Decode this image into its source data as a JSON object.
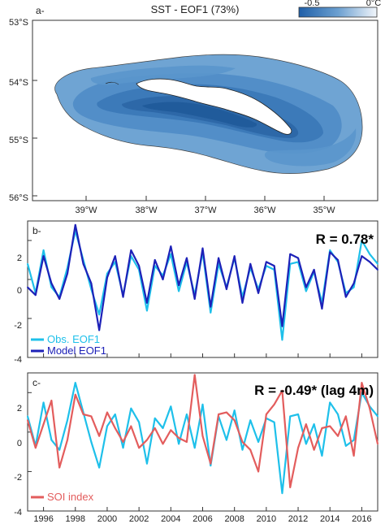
{
  "figure": {
    "panel_a": {
      "label": "a-",
      "title": "SST - EOF1 (73%)",
      "colorbar": {
        "min_label": "-0.5",
        "max_label": "0°C",
        "color_dark": "#1f5fa8",
        "color_light": "#f2f6fb"
      },
      "lat_labels": [
        "53°S",
        "54°S",
        "55°S",
        "56°S"
      ],
      "lon_labels": [
        "39°W",
        "38°W",
        "37°W",
        "36°W",
        "35°W"
      ]
    },
    "panel_b": {
      "label": "b-",
      "stat": "R = 0.78*",
      "legend": [
        "Obs.   EOF1",
        "Model EOF1"
      ],
      "y_ticks": [
        "2",
        "0",
        "-2",
        "-4"
      ]
    },
    "panel_c": {
      "label": "c-",
      "stat": "R = -0.49* (lag 4m)",
      "legend": [
        "SOI index"
      ],
      "y_ticks": [
        "2",
        "0",
        "-2",
        "-4"
      ],
      "x_ticks": [
        "1996",
        "1998",
        "2000",
        "2002",
        "2004",
        "2006",
        "2008",
        "2010",
        "2012",
        "2014",
        "2016"
      ]
    }
  },
  "chart_data": [
    {
      "type": "heatmap",
      "title": "SST - EOF1 (73%)",
      "xlabel": "",
      "ylabel": "",
      "xlim": [
        -40,
        -34.2
      ],
      "ylim": [
        -56,
        -53
      ],
      "x_ticks": [
        "39°W",
        "38°W",
        "37°W",
        "36°W",
        "35°W"
      ],
      "y_ticks": [
        "53°S",
        "54°S",
        "55°S",
        "56°S"
      ],
      "colorbar_range": [
        -0.5,
        0
      ],
      "colors": {
        "strong": "#1f5fa8",
        "weak": "#f2f6fb",
        "land": "#ffffff"
      }
    },
    {
      "type": "line",
      "xlim": [
        1995,
        2017
      ],
      "ylim": [
        -4,
        3
      ],
      "y_ticks": [
        2,
        0,
        -2,
        -4
      ],
      "x": [
        1995.0,
        1995.5,
        1996.0,
        1996.5,
        1997.0,
        1997.5,
        1998.0,
        1998.5,
        1999.0,
        1999.5,
        2000.0,
        2000.5,
        2001.0,
        2001.5,
        2002.0,
        2002.5,
        2003.0,
        2003.5,
        2004.0,
        2004.5,
        2005.0,
        2005.5,
        2006.0,
        2006.5,
        2007.0,
        2007.5,
        2008.0,
        2008.5,
        2009.0,
        2009.5,
        2010.0,
        2010.5,
        2011.0,
        2011.5,
        2012.0,
        2012.5,
        2013.0,
        2013.5,
        2014.0,
        2014.5,
        2015.0,
        2015.5,
        2016.0,
        2016.5,
        2017.0
      ],
      "series": [
        {
          "name": "Obs.   EOF1",
          "color": "#1ec0ea",
          "values": [
            0.8,
            -0.7,
            1.5,
            -0.4,
            -0.9,
            0.6,
            2.5,
            1.0,
            -0.5,
            -1.8,
            0.3,
            0.9,
            -0.8,
            1.2,
            0.5,
            -1.6,
            0.7,
            0.2,
            1.3,
            -0.6,
            0.9,
            -0.8,
            1.4,
            -1.7,
            0.8,
            -0.4,
            1.1,
            -0.9,
            0.6,
            -0.5,
            0.7,
            0.5,
            -3.1,
            0.8,
            0.9,
            -0.6,
            0.4,
            -1.2,
            1.5,
            0.9,
            -0.7,
            -0.4,
            2.0,
            1.3,
            0.8
          ]
        },
        {
          "name": "Model EOF1",
          "color": "#1d21b8",
          "values": [
            -0.4,
            -0.8,
            1.2,
            -0.2,
            -1.0,
            0.3,
            2.8,
            0.8,
            -0.2,
            -2.6,
            0.1,
            1.2,
            -0.9,
            1.5,
            0.7,
            -1.2,
            1.0,
            0.0,
            1.7,
            -0.3,
            1.1,
            -1.0,
            1.6,
            -1.4,
            1.1,
            -0.5,
            1.2,
            -1.2,
            0.8,
            -0.7,
            0.9,
            0.7,
            -2.4,
            1.3,
            1.1,
            -0.4,
            0.5,
            -1.5,
            1.4,
            1.0,
            -0.9,
            -0.2,
            1.2,
            0.9,
            0.5
          ]
        }
      ]
    },
    {
      "type": "line",
      "xlim": [
        1995,
        2017
      ],
      "ylim": [
        -4,
        3
      ],
      "y_ticks": [
        2,
        0,
        -2,
        -4
      ],
      "x_ticks": [
        1996,
        1998,
        2000,
        2002,
        2004,
        2006,
        2008,
        2010,
        2012,
        2014,
        2016
      ],
      "x": [
        1995.0,
        1995.5,
        1996.0,
        1996.5,
        1997.0,
        1997.5,
        1998.0,
        1998.5,
        1999.0,
        1999.5,
        2000.0,
        2000.5,
        2001.0,
        2001.5,
        2002.0,
        2002.5,
        2003.0,
        2003.5,
        2004.0,
        2004.5,
        2005.0,
        2005.5,
        2006.0,
        2006.5,
        2007.0,
        2007.5,
        2008.0,
        2008.5,
        2009.0,
        2009.5,
        2010.0,
        2010.5,
        2011.0,
        2011.5,
        2012.0,
        2012.5,
        2013.0,
        2013.5,
        2014.0,
        2014.5,
        2015.0,
        2015.5,
        2016.0,
        2016.5,
        2017.0
      ],
      "series": [
        {
          "color": "#1ec0ea",
          "values": [
            0.8,
            -0.7,
            1.5,
            -0.4,
            -0.9,
            0.6,
            2.5,
            1.0,
            -0.5,
            -1.8,
            0.3,
            0.9,
            -0.8,
            1.2,
            0.5,
            -1.6,
            0.7,
            0.2,
            1.3,
            -0.6,
            0.9,
            -0.8,
            1.4,
            -1.7,
            0.8,
            -0.4,
            1.1,
            -0.9,
            0.6,
            -0.5,
            0.7,
            0.5,
            -3.1,
            0.8,
            0.9,
            -0.6,
            0.4,
            -1.2,
            1.5,
            0.9,
            -0.7,
            -0.4,
            2.0,
            1.3,
            0.8
          ]
        },
        {
          "name": "SOI index",
          "color": "#e35d5d",
          "values": [
            0.6,
            -0.8,
            0.4,
            1.6,
            -1.8,
            -0.4,
            1.9,
            0.9,
            0.8,
            -0.2,
            1.0,
            0.2,
            -0.5,
            0.3,
            -0.8,
            -0.4,
            0.2,
            -0.6,
            0.1,
            -0.3,
            -0.5,
            2.9,
            -0.2,
            -1.6,
            0.9,
            1.0,
            0.6,
            -0.5,
            -0.9,
            -2.0,
            0.9,
            1.4,
            2.1,
            -2.8,
            -0.8,
            0.4,
            -0.9,
            0.2,
            0.3,
            -0.2,
            0.8,
            -1.2,
            2.5,
            1.2,
            -0.6
          ]
        }
      ]
    }
  ]
}
